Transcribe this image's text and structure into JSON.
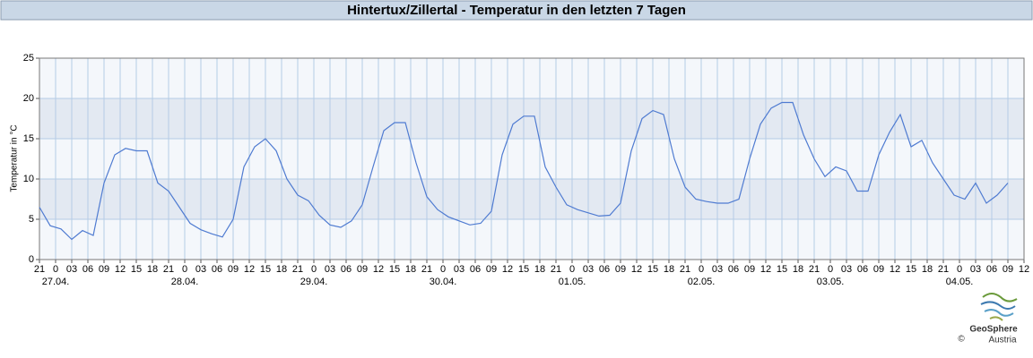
{
  "chart_data": {
    "type": "line",
    "title": "Hintertux/Zillertal - Temperatur in den letzten 7 Tagen",
    "y_label": "Temperatur in °C",
    "logo": {
      "name": "GeoSphere",
      "sub": "Austria",
      "copyright": "©"
    },
    "x": [
      0,
      2,
      4,
      6,
      8,
      10,
      12,
      14,
      16,
      18,
      20,
      22,
      24,
      26,
      28,
      30,
      32,
      34,
      36,
      38,
      40,
      42,
      44,
      46,
      48,
      50,
      52,
      54,
      56,
      58,
      60,
      62,
      64,
      66,
      68,
      70,
      72,
      74,
      76,
      78,
      80,
      82,
      84,
      86,
      88,
      90,
      92,
      94,
      96,
      98,
      100,
      102,
      104,
      106,
      108,
      110,
      112,
      114,
      116,
      118,
      120,
      122,
      124,
      126,
      128,
      130,
      132,
      134,
      136,
      138,
      140,
      142,
      144,
      146,
      148,
      150,
      152,
      154,
      156,
      158,
      160,
      162,
      164,
      166,
      168,
      170,
      172,
      174,
      176,
      178,
      180
    ],
    "series": [
      {
        "name": "Temperatur",
        "color": "#4f7bd1",
        "values": [
          6.5,
          4.2,
          3.8,
          2.5,
          3.6,
          3,
          9.5,
          13,
          13.8,
          13.5,
          13.5,
          9.5,
          8.5,
          6.5,
          4.5,
          3.7,
          3.2,
          2.8,
          5,
          11.5,
          14,
          15,
          13.5,
          10,
          8,
          7.3,
          5.5,
          4.3,
          4,
          4.8,
          6.8,
          11.5,
          16,
          17,
          17,
          12,
          7.8,
          6.2,
          5.3,
          4.8,
          4.3,
          4.5,
          6,
          13,
          16.8,
          17.8,
          17.8,
          11.5,
          9,
          6.8,
          6.2,
          5.8,
          5.4,
          5.5,
          7,
          13.5,
          17.5,
          18.5,
          18,
          12.5,
          9,
          7.5,
          7.2,
          7,
          7,
          7.5,
          12.5,
          16.8,
          18.8,
          19.5,
          19.5,
          15.5,
          12.5,
          10.3,
          11.5,
          11,
          8.5,
          8.5,
          13,
          15.8,
          18,
          14,
          14.8,
          12,
          10,
          8,
          7.5,
          9.5,
          7,
          8,
          9.5
        ]
      }
    ],
    "xlim": [
      0,
      183
    ],
    "ylim": [
      0,
      25
    ],
    "yticks": [
      0,
      5,
      10,
      15,
      20,
      25
    ],
    "bands": true,
    "grid": true,
    "xticks": [
      {
        "value": 0,
        "label": "21"
      },
      {
        "value": 3,
        "label": "0"
      },
      {
        "value": 6,
        "label": "03"
      },
      {
        "value": 9,
        "label": "06"
      },
      {
        "value": 12,
        "label": "09"
      },
      {
        "value": 15,
        "label": "12"
      },
      {
        "value": 18,
        "label": "15"
      },
      {
        "value": 21,
        "label": "18"
      },
      {
        "value": 24,
        "label": "21"
      },
      {
        "value": 27,
        "label": "0"
      },
      {
        "value": 30,
        "label": "03"
      },
      {
        "value": 33,
        "label": "06"
      },
      {
        "value": 36,
        "label": "09"
      },
      {
        "value": 39,
        "label": "12"
      },
      {
        "value": 42,
        "label": "15"
      },
      {
        "value": 45,
        "label": "18"
      },
      {
        "value": 48,
        "label": "21"
      },
      {
        "value": 51,
        "label": "0"
      },
      {
        "value": 54,
        "label": "03"
      },
      {
        "value": 57,
        "label": "06"
      },
      {
        "value": 60,
        "label": "09"
      },
      {
        "value": 63,
        "label": "12"
      },
      {
        "value": 66,
        "label": "15"
      },
      {
        "value": 69,
        "label": "18"
      },
      {
        "value": 72,
        "label": "21"
      },
      {
        "value": 75,
        "label": "0"
      },
      {
        "value": 78,
        "label": "03"
      },
      {
        "value": 81,
        "label": "06"
      },
      {
        "value": 84,
        "label": "09"
      },
      {
        "value": 87,
        "label": "12"
      },
      {
        "value": 90,
        "label": "15"
      },
      {
        "value": 93,
        "label": "18"
      },
      {
        "value": 96,
        "label": "21"
      },
      {
        "value": 99,
        "label": "0"
      },
      {
        "value": 102,
        "label": "03"
      },
      {
        "value": 105,
        "label": "06"
      },
      {
        "value": 108,
        "label": "09"
      },
      {
        "value": 111,
        "label": "12"
      },
      {
        "value": 114,
        "label": "15"
      },
      {
        "value": 117,
        "label": "18"
      },
      {
        "value": 120,
        "label": "21"
      },
      {
        "value": 123,
        "label": "0"
      },
      {
        "value": 126,
        "label": "03"
      },
      {
        "value": 129,
        "label": "06"
      },
      {
        "value": 132,
        "label": "09"
      },
      {
        "value": 135,
        "label": "12"
      },
      {
        "value": 138,
        "label": "15"
      },
      {
        "value": 141,
        "label": "18"
      },
      {
        "value": 144,
        "label": "21"
      },
      {
        "value": 147,
        "label": "0"
      },
      {
        "value": 150,
        "label": "03"
      },
      {
        "value": 153,
        "label": "06"
      },
      {
        "value": 156,
        "label": "09"
      },
      {
        "value": 159,
        "label": "12"
      },
      {
        "value": 162,
        "label": "15"
      },
      {
        "value": 165,
        "label": "18"
      },
      {
        "value": 168,
        "label": "21"
      },
      {
        "value": 171,
        "label": "0"
      },
      {
        "value": 174,
        "label": "03"
      },
      {
        "value": 177,
        "label": "06"
      },
      {
        "value": 180,
        "label": "09"
      },
      {
        "value": 183,
        "label": "12"
      }
    ],
    "date_labels": [
      {
        "value": 3,
        "label": "27.04."
      },
      {
        "value": 27,
        "label": "28.04."
      },
      {
        "value": 51,
        "label": "29.04."
      },
      {
        "value": 75,
        "label": "30.04."
      },
      {
        "value": 99,
        "label": "01.05."
      },
      {
        "value": 123,
        "label": "02.05."
      },
      {
        "value": 147,
        "label": "03.05."
      },
      {
        "value": 171,
        "label": "04.05."
      }
    ]
  }
}
